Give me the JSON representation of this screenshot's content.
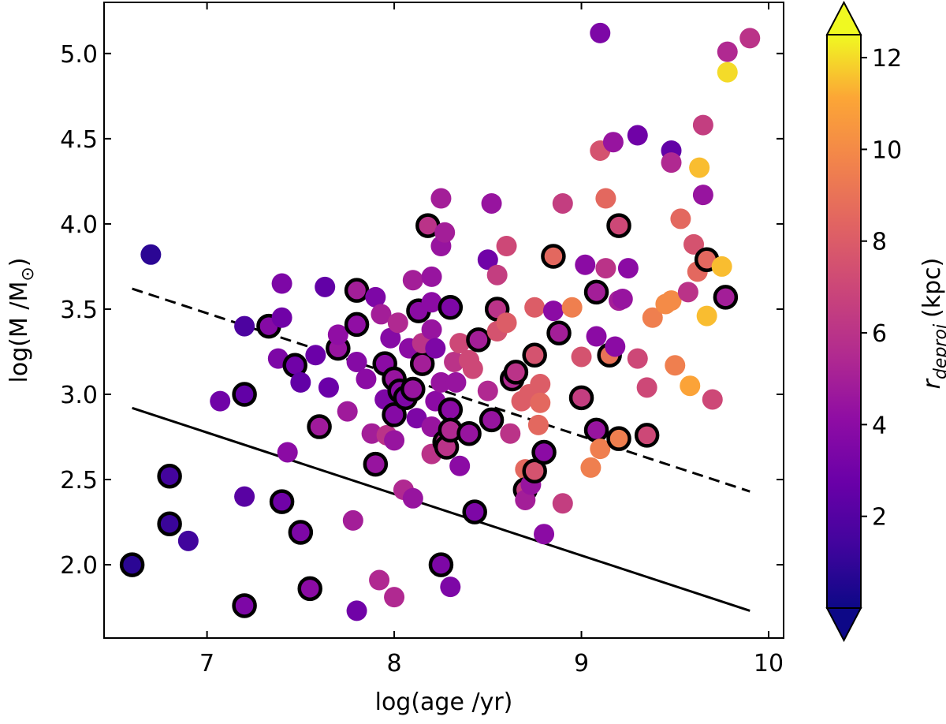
{
  "chart_data": {
    "type": "scatter",
    "xlabel": "log(age /yr)",
    "ylabel": {
      "text": "log(M /M",
      "sub": "⊙",
      "close": ")"
    },
    "xlim": [
      6.45,
      10.08
    ],
    "ylim": [
      1.57,
      5.3
    ],
    "xticks": [
      7,
      8,
      9,
      10
    ],
    "xtick_labels": [
      "7",
      "8",
      "9",
      "10"
    ],
    "yticks": [
      2.0,
      2.5,
      3.0,
      3.5,
      4.0,
      4.5,
      5.0
    ],
    "ytick_labels": [
      "2.0",
      "2.5",
      "3.0",
      "3.5",
      "4.0",
      "4.5",
      "5.0"
    ],
    "colorbar": {
      "label_main": "r",
      "label_sub": "deproj",
      "label_unit": "(kpc)",
      "cmap": "plasma",
      "range": [
        0,
        12.5
      ],
      "ticks": [
        2,
        4,
        6,
        8,
        10,
        12
      ],
      "tick_labels": [
        "2",
        "4",
        "6",
        "8",
        "10",
        "12"
      ],
      "extend": "both"
    },
    "lines": [
      {
        "name": "dashed-limit",
        "style": "dashed",
        "x": [
          6.6,
          9.9
        ],
        "y": [
          3.62,
          2.43
        ]
      },
      {
        "name": "solid-limit",
        "style": "solid",
        "x": [
          6.6,
          9.9
        ],
        "y": [
          2.92,
          1.73
        ]
      }
    ],
    "points": [
      {
        "x": 6.7,
        "y": 3.82,
        "r": 0.8,
        "o": false
      },
      {
        "x": 6.6,
        "y": 2.0,
        "r": 0.8,
        "o": true
      },
      {
        "x": 6.8,
        "y": 2.52,
        "r": 1.5,
        "o": true
      },
      {
        "x": 6.8,
        "y": 2.24,
        "r": 1.2,
        "o": true
      },
      {
        "x": 6.9,
        "y": 2.14,
        "r": 1.4,
        "o": false
      },
      {
        "x": 7.07,
        "y": 2.96,
        "r": 3.0,
        "o": false
      },
      {
        "x": 7.2,
        "y": 3.4,
        "r": 1.8,
        "o": false
      },
      {
        "x": 7.2,
        "y": 3.0,
        "r": 2.5,
        "o": true
      },
      {
        "x": 7.2,
        "y": 2.4,
        "r": 2.2,
        "o": false
      },
      {
        "x": 7.2,
        "y": 1.76,
        "r": 3.5,
        "o": true
      },
      {
        "x": 7.33,
        "y": 3.4,
        "r": 3.8,
        "o": true
      },
      {
        "x": 7.4,
        "y": 3.65,
        "r": 3.5,
        "o": false
      },
      {
        "x": 7.4,
        "y": 3.45,
        "r": 3.0,
        "o": false
      },
      {
        "x": 7.38,
        "y": 3.21,
        "r": 3.5,
        "o": false
      },
      {
        "x": 7.4,
        "y": 2.37,
        "r": 3.0,
        "o": true
      },
      {
        "x": 7.43,
        "y": 2.66,
        "r": 4.0,
        "o": false
      },
      {
        "x": 7.47,
        "y": 3.17,
        "r": 3.0,
        "o": true
      },
      {
        "x": 7.5,
        "y": 3.07,
        "r": 2.5,
        "o": false
      },
      {
        "x": 7.5,
        "y": 2.19,
        "r": 3.5,
        "o": true
      },
      {
        "x": 7.55,
        "y": 1.86,
        "r": 4.0,
        "o": true
      },
      {
        "x": 7.58,
        "y": 3.23,
        "r": 2.8,
        "o": false
      },
      {
        "x": 7.6,
        "y": 2.81,
        "r": 4.8,
        "o": true
      },
      {
        "x": 7.63,
        "y": 3.63,
        "r": 2.5,
        "o": false
      },
      {
        "x": 7.65,
        "y": 3.04,
        "r": 2.8,
        "o": false
      },
      {
        "x": 7.7,
        "y": 3.27,
        "r": 4.5,
        "o": true
      },
      {
        "x": 7.7,
        "y": 3.35,
        "r": 4.2,
        "o": false
      },
      {
        "x": 7.75,
        "y": 2.9,
        "r": 4.8,
        "o": false
      },
      {
        "x": 7.78,
        "y": 2.26,
        "r": 5.0,
        "o": false
      },
      {
        "x": 7.8,
        "y": 3.61,
        "r": 5.0,
        "o": true
      },
      {
        "x": 7.8,
        "y": 3.41,
        "r": 4.2,
        "o": true
      },
      {
        "x": 7.8,
        "y": 3.19,
        "r": 3.8,
        "o": false
      },
      {
        "x": 7.8,
        "y": 1.73,
        "r": 3.0,
        "o": false
      },
      {
        "x": 7.85,
        "y": 3.09,
        "r": 4.0,
        "o": false
      },
      {
        "x": 7.88,
        "y": 2.77,
        "r": 5.0,
        "o": false
      },
      {
        "x": 7.9,
        "y": 3.57,
        "r": 3.5,
        "o": false
      },
      {
        "x": 7.9,
        "y": 2.59,
        "r": 4.5,
        "o": true
      },
      {
        "x": 7.92,
        "y": 1.91,
        "r": 5.5,
        "o": false
      },
      {
        "x": 7.93,
        "y": 3.47,
        "r": 5.0,
        "o": false
      },
      {
        "x": 7.95,
        "y": 3.18,
        "r": 4.0,
        "o": true
      },
      {
        "x": 7.95,
        "y": 2.97,
        "r": 3.5,
        "o": false
      },
      {
        "x": 7.96,
        "y": 2.76,
        "r": 6.0,
        "o": false
      },
      {
        "x": 7.98,
        "y": 3.33,
        "r": 3.8,
        "o": false
      },
      {
        "x": 8.0,
        "y": 3.09,
        "r": 4.5,
        "o": true
      },
      {
        "x": 8.0,
        "y": 2.88,
        "r": 3.8,
        "o": true
      },
      {
        "x": 8.0,
        "y": 2.73,
        "r": 4.5,
        "o": false
      },
      {
        "x": 8.0,
        "y": 1.81,
        "r": 5.5,
        "o": false
      },
      {
        "x": 8.02,
        "y": 3.42,
        "r": 5.5,
        "o": false
      },
      {
        "x": 8.03,
        "y": 3.02,
        "r": 4.0,
        "o": true
      },
      {
        "x": 8.05,
        "y": 2.44,
        "r": 5.5,
        "o": false
      },
      {
        "x": 8.06,
        "y": 2.98,
        "r": 3.5,
        "o": true
      },
      {
        "x": 8.08,
        "y": 3.27,
        "r": 4.0,
        "o": false
      },
      {
        "x": 8.1,
        "y": 3.67,
        "r": 5.0,
        "o": false
      },
      {
        "x": 8.1,
        "y": 3.03,
        "r": 4.5,
        "o": true
      },
      {
        "x": 8.12,
        "y": 2.86,
        "r": 3.5,
        "o": false
      },
      {
        "x": 8.1,
        "y": 2.39,
        "r": 4.5,
        "o": false
      },
      {
        "x": 8.13,
        "y": 3.49,
        "r": 4.0,
        "o": true
      },
      {
        "x": 8.15,
        "y": 3.18,
        "r": 5.0,
        "o": true
      },
      {
        "x": 8.15,
        "y": 3.3,
        "r": 6.0,
        "o": false
      },
      {
        "x": 8.18,
        "y": 3.99,
        "r": 6.0,
        "o": true
      },
      {
        "x": 8.2,
        "y": 3.69,
        "r": 4.5,
        "o": false
      },
      {
        "x": 8.2,
        "y": 3.54,
        "r": 4.0,
        "o": false
      },
      {
        "x": 8.2,
        "y": 3.38,
        "r": 4.5,
        "o": false
      },
      {
        "x": 8.22,
        "y": 3.27,
        "r": 3.5,
        "o": false
      },
      {
        "x": 8.22,
        "y": 2.96,
        "r": 4.0,
        "o": false
      },
      {
        "x": 8.2,
        "y": 2.81,
        "r": 4.5,
        "o": false
      },
      {
        "x": 8.2,
        "y": 2.65,
        "r": 6.0,
        "o": false
      },
      {
        "x": 8.25,
        "y": 4.15,
        "r": 5.0,
        "o": false
      },
      {
        "x": 8.25,
        "y": 3.87,
        "r": 4.5,
        "o": false
      },
      {
        "x": 8.27,
        "y": 3.95,
        "r": 5.0,
        "o": false
      },
      {
        "x": 8.25,
        "y": 3.07,
        "r": 4.5,
        "o": false
      },
      {
        "x": 8.25,
        "y": 2.0,
        "r": 3.5,
        "o": true
      },
      {
        "x": 8.27,
        "y": 2.72,
        "r": 5.5,
        "o": true
      },
      {
        "x": 8.28,
        "y": 2.69,
        "r": 6.0,
        "o": true
      },
      {
        "x": 8.3,
        "y": 3.51,
        "r": 3.5,
        "o": true
      },
      {
        "x": 8.3,
        "y": 2.91,
        "r": 4.0,
        "o": true
      },
      {
        "x": 8.3,
        "y": 2.79,
        "r": 5.5,
        "o": true
      },
      {
        "x": 8.3,
        "y": 1.87,
        "r": 3.5,
        "o": false
      },
      {
        "x": 8.32,
        "y": 3.19,
        "r": 6.0,
        "o": false
      },
      {
        "x": 8.33,
        "y": 3.07,
        "r": 4.5,
        "o": false
      },
      {
        "x": 8.35,
        "y": 3.3,
        "r": 7.0,
        "o": false
      },
      {
        "x": 8.35,
        "y": 2.58,
        "r": 4.0,
        "o": false
      },
      {
        "x": 8.4,
        "y": 3.2,
        "r": 7.0,
        "o": false
      },
      {
        "x": 8.4,
        "y": 2.77,
        "r": 4.5,
        "o": true
      },
      {
        "x": 8.42,
        "y": 3.15,
        "r": 7.0,
        "o": false
      },
      {
        "x": 8.43,
        "y": 2.31,
        "r": 3.5,
        "o": true
      },
      {
        "x": 8.45,
        "y": 3.32,
        "r": 5.0,
        "o": true
      },
      {
        "x": 8.5,
        "y": 3.79,
        "r": 3.0,
        "o": false
      },
      {
        "x": 8.5,
        "y": 3.02,
        "r": 5.5,
        "o": false
      },
      {
        "x": 8.52,
        "y": 4.12,
        "r": 4.5,
        "o": false
      },
      {
        "x": 8.52,
        "y": 2.85,
        "r": 4.5,
        "o": true
      },
      {
        "x": 8.55,
        "y": 3.5,
        "r": 6.0,
        "o": true
      },
      {
        "x": 8.55,
        "y": 3.37,
        "r": 7.5,
        "o": false
      },
      {
        "x": 8.55,
        "y": 3.7,
        "r": 6.5,
        "o": false
      },
      {
        "x": 8.6,
        "y": 3.87,
        "r": 7.0,
        "o": false
      },
      {
        "x": 8.6,
        "y": 3.42,
        "r": 8.0,
        "o": false
      },
      {
        "x": 8.62,
        "y": 2.77,
        "r": 6.0,
        "o": false
      },
      {
        "x": 8.63,
        "y": 3.09,
        "r": 5.5,
        "o": true
      },
      {
        "x": 8.65,
        "y": 3.13,
        "r": 6.0,
        "o": true
      },
      {
        "x": 8.68,
        "y": 2.96,
        "r": 8.0,
        "o": false
      },
      {
        "x": 8.7,
        "y": 2.56,
        "r": 8.5,
        "o": false
      },
      {
        "x": 8.7,
        "y": 2.44,
        "r": 6.5,
        "o": true
      },
      {
        "x": 8.7,
        "y": 2.38,
        "r": 5.0,
        "o": false
      },
      {
        "x": 8.72,
        "y": 3.0,
        "r": 8.0,
        "o": false
      },
      {
        "x": 8.73,
        "y": 2.47,
        "r": 4.5,
        "o": false
      },
      {
        "x": 8.75,
        "y": 3.51,
        "r": 8.0,
        "o": false
      },
      {
        "x": 8.75,
        "y": 3.23,
        "r": 7.5,
        "o": true
      },
      {
        "x": 8.75,
        "y": 2.55,
        "r": 7.5,
        "o": true
      },
      {
        "x": 8.77,
        "y": 2.82,
        "r": 8.5,
        "o": false
      },
      {
        "x": 8.78,
        "y": 3.06,
        "r": 8.0,
        "o": false
      },
      {
        "x": 8.78,
        "y": 2.95,
        "r": 8.5,
        "o": false
      },
      {
        "x": 8.8,
        "y": 2.66,
        "r": 4.0,
        "o": true
      },
      {
        "x": 8.8,
        "y": 2.18,
        "r": 4.0,
        "o": false
      },
      {
        "x": 8.85,
        "y": 3.81,
        "r": 8.5,
        "o": true
      },
      {
        "x": 8.85,
        "y": 3.49,
        "r": 4.0,
        "o": false
      },
      {
        "x": 8.88,
        "y": 3.36,
        "r": 5.0,
        "o": true
      },
      {
        "x": 8.9,
        "y": 4.12,
        "r": 6.5,
        "o": false
      },
      {
        "x": 8.9,
        "y": 2.36,
        "r": 6.5,
        "o": false
      },
      {
        "x": 8.95,
        "y": 3.51,
        "r": 9.5,
        "o": false
      },
      {
        "x": 9.0,
        "y": 3.22,
        "r": 7.5,
        "o": false
      },
      {
        "x": 9.0,
        "y": 2.98,
        "r": 6.5,
        "o": true
      },
      {
        "x": 9.02,
        "y": 3.76,
        "r": 4.0,
        "o": false
      },
      {
        "x": 9.05,
        "y": 2.57,
        "r": 9.5,
        "o": false
      },
      {
        "x": 9.08,
        "y": 3.6,
        "r": 5.0,
        "o": true
      },
      {
        "x": 9.08,
        "y": 3.34,
        "r": 4.0,
        "o": false
      },
      {
        "x": 9.08,
        "y": 2.79,
        "r": 4.5,
        "o": true
      },
      {
        "x": 9.1,
        "y": 5.12,
        "r": 3.5,
        "o": false
      },
      {
        "x": 9.1,
        "y": 4.43,
        "r": 7.5,
        "o": false
      },
      {
        "x": 9.1,
        "y": 2.68,
        "r": 9.5,
        "o": false
      },
      {
        "x": 9.13,
        "y": 4.15,
        "r": 8.5,
        "o": false
      },
      {
        "x": 9.13,
        "y": 3.74,
        "r": 6.0,
        "o": false
      },
      {
        "x": 9.15,
        "y": 3.23,
        "r": 9.0,
        "o": true
      },
      {
        "x": 9.17,
        "y": 4.48,
        "r": 4.5,
        "o": false
      },
      {
        "x": 9.18,
        "y": 3.28,
        "r": 4.0,
        "o": false
      },
      {
        "x": 9.2,
        "y": 3.99,
        "r": 7.0,
        "o": true
      },
      {
        "x": 9.2,
        "y": 2.74,
        "r": 9.5,
        "o": true
      },
      {
        "x": 9.2,
        "y": 3.55,
        "r": 5.0,
        "o": false
      },
      {
        "x": 9.22,
        "y": 3.56,
        "r": 4.5,
        "o": false
      },
      {
        "x": 9.25,
        "y": 3.74,
        "r": 4.0,
        "o": false
      },
      {
        "x": 9.3,
        "y": 4.52,
        "r": 3.0,
        "o": false
      },
      {
        "x": 9.3,
        "y": 3.21,
        "r": 7.0,
        "o": false
      },
      {
        "x": 9.35,
        "y": 3.04,
        "r": 7.0,
        "o": false
      },
      {
        "x": 9.35,
        "y": 2.76,
        "r": 7.0,
        "o": true
      },
      {
        "x": 9.38,
        "y": 3.45,
        "r": 9.5,
        "o": false
      },
      {
        "x": 9.45,
        "y": 3.53,
        "r": 10.0,
        "o": false
      },
      {
        "x": 9.48,
        "y": 3.55,
        "r": 10.0,
        "o": false
      },
      {
        "x": 9.48,
        "y": 4.43,
        "r": 2.5,
        "o": false
      },
      {
        "x": 9.48,
        "y": 4.36,
        "r": 5.5,
        "o": false
      },
      {
        "x": 9.5,
        "y": 3.17,
        "r": 9.5,
        "o": false
      },
      {
        "x": 9.53,
        "y": 4.03,
        "r": 8.5,
        "o": false
      },
      {
        "x": 9.57,
        "y": 3.6,
        "r": 6.0,
        "o": false
      },
      {
        "x": 9.58,
        "y": 3.05,
        "r": 11.0,
        "o": false
      },
      {
        "x": 9.6,
        "y": 3.88,
        "r": 7.5,
        "o": false
      },
      {
        "x": 9.62,
        "y": 3.72,
        "r": 8.5,
        "o": false
      },
      {
        "x": 9.63,
        "y": 4.33,
        "r": 11.5,
        "o": false
      },
      {
        "x": 9.65,
        "y": 4.58,
        "r": 6.5,
        "o": false
      },
      {
        "x": 9.65,
        "y": 4.17,
        "r": 4.5,
        "o": false
      },
      {
        "x": 9.67,
        "y": 3.79,
        "r": 8.5,
        "o": true
      },
      {
        "x": 9.67,
        "y": 3.46,
        "r": 11.5,
        "o": false
      },
      {
        "x": 9.7,
        "y": 2.97,
        "r": 7.0,
        "o": false
      },
      {
        "x": 9.75,
        "y": 3.75,
        "r": 11.5,
        "o": false
      },
      {
        "x": 9.77,
        "y": 3.57,
        "r": 5.0,
        "o": true
      },
      {
        "x": 9.78,
        "y": 5.01,
        "r": 5.5,
        "o": false
      },
      {
        "x": 9.78,
        "y": 4.89,
        "r": 12.0,
        "o": false
      },
      {
        "x": 9.9,
        "y": 5.09,
        "r": 6.0,
        "o": false
      }
    ]
  }
}
